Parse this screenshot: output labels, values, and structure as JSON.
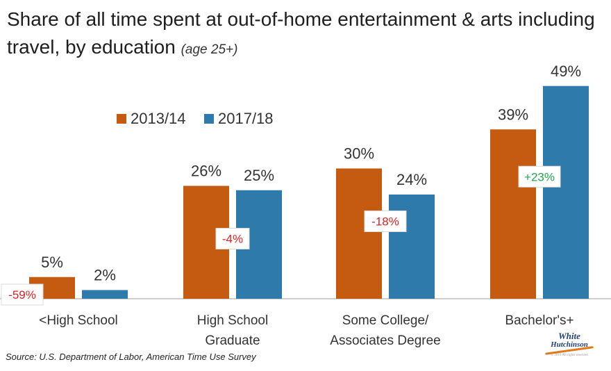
{
  "title": {
    "main": "Share of all time spent at out-of-home entertainment & arts including travel, by education",
    "sub": "(age 25+)"
  },
  "source": "Source: U.S. Department of Labor, American Time Use Survey",
  "logo": {
    "line1": "White",
    "line2": "Hutchinson",
    "copyright": "© 2019 All rights reserved"
  },
  "colors": {
    "series1": "#c55a11",
    "series2": "#2e7bab",
    "negative": "#e02020",
    "positive": "#1fa84a"
  },
  "chart_data": {
    "type": "bar",
    "categories": [
      [
        "<High School"
      ],
      [
        "High School",
        "Graduate"
      ],
      [
        "Some College/",
        "Associates Degree"
      ],
      [
        "Bachelor's+"
      ]
    ],
    "series": [
      {
        "name": "2013/14",
        "values": [
          5,
          26,
          30,
          39
        ],
        "labels": [
          "5%",
          "26%",
          "30%",
          "39%"
        ]
      },
      {
        "name": "2017/18",
        "values": [
          2,
          25,
          24,
          49
        ],
        "labels": [
          "2%",
          "25%",
          "24%",
          "49%"
        ]
      }
    ],
    "changes": [
      "-59%",
      "-4%",
      "-18%",
      "+23%"
    ],
    "ylim": [
      0,
      52
    ],
    "legend": "top-left",
    "grid": false
  }
}
